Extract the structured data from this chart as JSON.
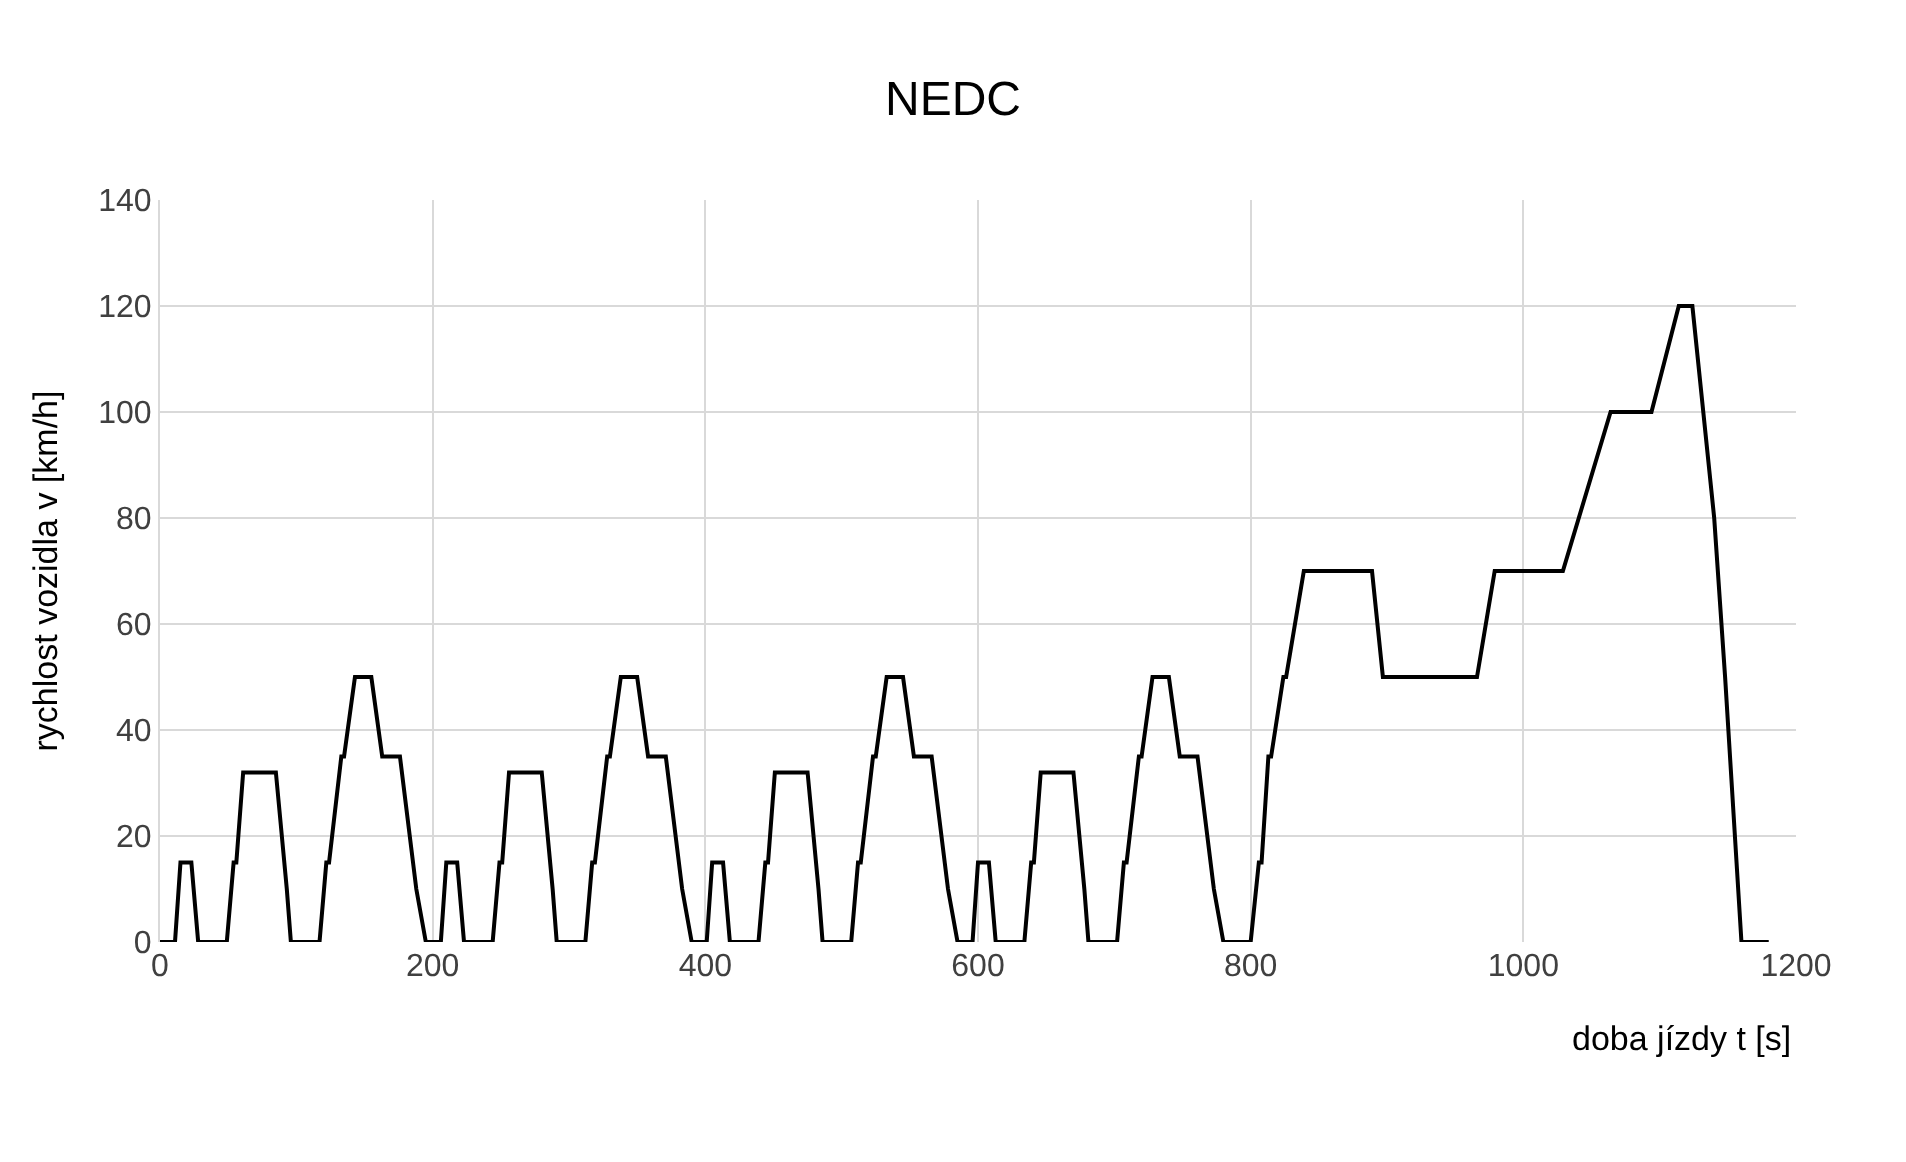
{
  "chart_data": {
    "type": "line",
    "title": "NEDC",
    "xlabel": "doba jízdy t [s]",
    "ylabel": "rychlost vozidla v [km/h]",
    "xlim": [
      0,
      1200
    ],
    "xticks": [
      0,
      200,
      400,
      600,
      800,
      1000,
      1200
    ],
    "ylim": [
      0,
      140
    ],
    "yticks": [
      0,
      20,
      40,
      60,
      80,
      100,
      120,
      140
    ],
    "grid": true,
    "marker": "none",
    "line_style": "solid",
    "series": [
      {
        "color": "#000000",
        "x": [
          0,
          11,
          15,
          23,
          28,
          49,
          54,
          56,
          61,
          85,
          93,
          96,
          117,
          122,
          124,
          133,
          135,
          143,
          155,
          163,
          176,
          188,
          195,
          206,
          210,
          218,
          223,
          244,
          249,
          251,
          256,
          280,
          288,
          291,
          312,
          317,
          319,
          328,
          330,
          338,
          350,
          358,
          371,
          383,
          390,
          401,
          405,
          413,
          418,
          439,
          444,
          446,
          451,
          475,
          483,
          486,
          507,
          512,
          514,
          523,
          525,
          533,
          545,
          553,
          566,
          578,
          585,
          596,
          600,
          608,
          613,
          634,
          639,
          641,
          646,
          670,
          678,
          681,
          702,
          707,
          709,
          718,
          720,
          728,
          740,
          748,
          761,
          773,
          780,
          800,
          806,
          808,
          813,
          815,
          824,
          826,
          839,
          889,
          897,
          966,
          979,
          1029,
          1064,
          1094,
          1114,
          1124,
          1140,
          1148,
          1160,
          1180
        ],
        "values": [
          0,
          0,
          15,
          15,
          0,
          0,
          15,
          15,
          32,
          32,
          10,
          0,
          0,
          15,
          15,
          35,
          35,
          50,
          50,
          35,
          35,
          10,
          0,
          0,
          15,
          15,
          0,
          0,
          15,
          15,
          32,
          32,
          10,
          0,
          0,
          15,
          15,
          35,
          35,
          50,
          50,
          35,
          35,
          10,
          0,
          0,
          15,
          15,
          0,
          0,
          15,
          15,
          32,
          32,
          10,
          0,
          0,
          15,
          15,
          35,
          35,
          50,
          50,
          35,
          35,
          10,
          0,
          0,
          15,
          15,
          0,
          0,
          15,
          15,
          32,
          32,
          10,
          0,
          0,
          15,
          15,
          35,
          35,
          50,
          50,
          35,
          35,
          10,
          0,
          0,
          15,
          15,
          35,
          35,
          50,
          50,
          70,
          70,
          50,
          50,
          70,
          70,
          100,
          100,
          120,
          120,
          80,
          50,
          0,
          0
        ]
      }
    ]
  }
}
